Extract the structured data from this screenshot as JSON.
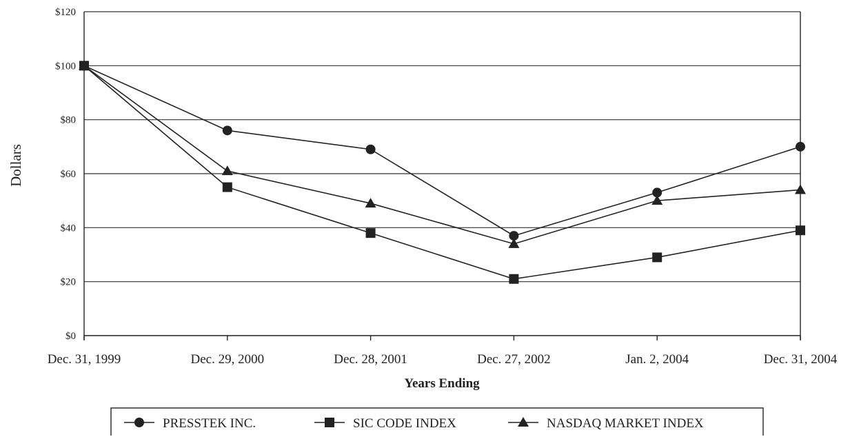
{
  "chart_data": {
    "type": "line",
    "title": "",
    "xlabel": "Years Ending",
    "ylabel": "Dollars",
    "categories": [
      "Dec. 31, 1999",
      "Dec. 29, 2000",
      "Dec. 28, 2001",
      "Dec. 27, 2002",
      "Jan. 2, 2004",
      "Dec. 31, 2004"
    ],
    "y_ticks": [
      "$0",
      "$20",
      "$40",
      "$60",
      "$80",
      "$100",
      "$120"
    ],
    "ylim": [
      0,
      120
    ],
    "grid": "horizontal",
    "legend_position": "bottom",
    "series": [
      {
        "name": "PRESSTEK INC.",
        "marker": "circle",
        "values": [
          100,
          76,
          69,
          37,
          53,
          70
        ]
      },
      {
        "name": "SIC CODE INDEX",
        "marker": "square",
        "values": [
          100,
          55,
          38,
          21,
          29,
          39
        ]
      },
      {
        "name": "NASDAQ MARKET INDEX",
        "marker": "triangle",
        "values": [
          100,
          61,
          49,
          34,
          50,
          54
        ]
      }
    ],
    "colors": {
      "line": "#222222",
      "grid": "#333333",
      "background": "#ffffff"
    }
  }
}
